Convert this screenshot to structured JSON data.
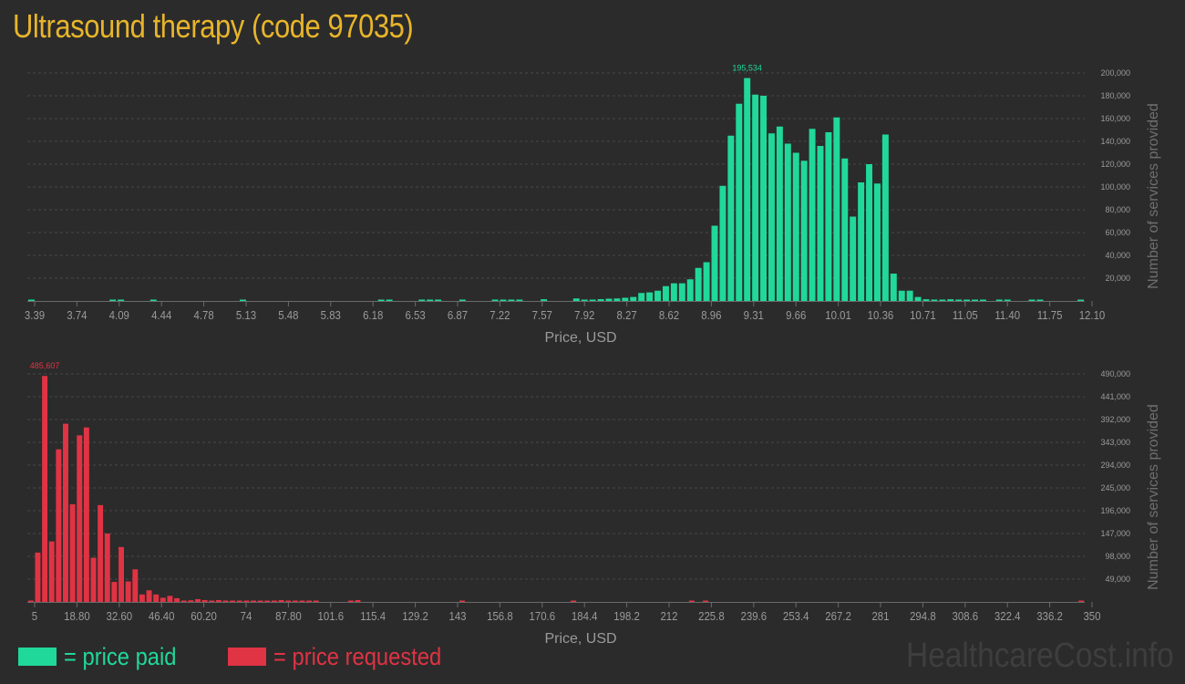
{
  "title": "Ultrasound therapy (code 97035)",
  "colors": {
    "background": "#2b2b2b",
    "paid": "#20d89a",
    "requested": "#e03344",
    "title": "#e8b52a",
    "axis_text": "#9a9a9a"
  },
  "legend": {
    "paid_label": "= price paid",
    "requested_label": "= price requested"
  },
  "watermark": "HealthcareCost.info",
  "chart_data": [
    {
      "type": "bar",
      "series": [
        {
          "name": "price paid"
        }
      ],
      "xlabel": "Price, USD",
      "ylabel": "Number of services provided",
      "xlim": [
        3.39,
        12.1
      ],
      "ylim": [
        0,
        200000
      ],
      "x_ticks": [
        "3.39",
        "3.74",
        "4.09",
        "4.44",
        "4.78",
        "5.13",
        "5.48",
        "5.83",
        "6.18",
        "6.53",
        "6.87",
        "7.22",
        "7.57",
        "7.92",
        "8.27",
        "8.62",
        "8.96",
        "9.31",
        "9.66",
        "10.01",
        "10.36",
        "10.71",
        "11.05",
        "11.40",
        "11.75",
        "12.10"
      ],
      "y_ticks": [
        "20,000",
        "40,000",
        "60,000",
        "80,000",
        "100,000",
        "120,000",
        "140,000",
        "160,000",
        "180,000",
        "200,000"
      ],
      "peak_label": "195,534",
      "grid": true,
      "values": [
        800,
        0,
        0,
        0,
        0,
        0,
        0,
        0,
        0,
        0,
        600,
        400,
        0,
        0,
        0,
        500,
        0,
        0,
        0,
        0,
        0,
        0,
        0,
        0,
        0,
        0,
        600,
        0,
        0,
        0,
        0,
        0,
        0,
        0,
        0,
        0,
        0,
        0,
        0,
        0,
        0,
        0,
        0,
        500,
        500,
        0,
        0,
        0,
        400,
        400,
        400,
        0,
        0,
        300,
        0,
        0,
        0,
        500,
        500,
        900,
        800,
        0,
        0,
        1500,
        0,
        0,
        0,
        2200,
        500,
        1000,
        1600,
        2000,
        2200,
        2800,
        3500,
        7000,
        7500,
        9000,
        13000,
        15500,
        15500,
        19000,
        29000,
        34000,
        66000,
        101000,
        145000,
        173000,
        195534,
        181000,
        180000,
        147000,
        153000,
        138000,
        130000,
        123000,
        151000,
        136000,
        148000,
        161000,
        125000,
        74000,
        104000,
        120000,
        103000,
        146000,
        24000,
        9000,
        9000,
        3500,
        1500,
        1200,
        1000,
        1500,
        900,
        800,
        500,
        400,
        0,
        500,
        500,
        0,
        0,
        700,
        500,
        0,
        0,
        0,
        0,
        500
      ]
    },
    {
      "type": "bar",
      "series": [
        {
          "name": "price requested"
        }
      ],
      "xlabel": "Price, USD",
      "ylabel": "Number of services provided",
      "xlim": [
        5,
        350
      ],
      "ylim": [
        0,
        490000
      ],
      "x_ticks": [
        "5",
        "18.80",
        "32.60",
        "46.40",
        "60.20",
        "74",
        "87.80",
        "101.6",
        "115.4",
        "129.2",
        "143",
        "156.8",
        "170.6",
        "184.4",
        "198.2",
        "212",
        "225.8",
        "239.6",
        "253.4",
        "267.2",
        "281",
        "294.8",
        "308.6",
        "322.4",
        "336.2",
        "350"
      ],
      "y_ticks": [
        "49,000",
        "98,000",
        "147,000",
        "196,000",
        "245,000",
        "294,000",
        "343,000",
        "392,000",
        "441,000",
        "490,000"
      ],
      "peak_label": "485,607",
      "grid": true,
      "values": [
        3000,
        106000,
        485607,
        130000,
        328000,
        383000,
        210000,
        358000,
        375000,
        95000,
        208000,
        147000,
        43000,
        118000,
        44000,
        70000,
        16000,
        25000,
        16000,
        9000,
        13000,
        8000,
        3000,
        3500,
        6000,
        4000,
        3000,
        4000,
        3000,
        2000,
        1500,
        1500,
        1000,
        1200,
        1000,
        500,
        4000,
        1000,
        500,
        800,
        500,
        500,
        0,
        0,
        0,
        0,
        2000,
        4000,
        0,
        0,
        0,
        0,
        0,
        0,
        0,
        0,
        0,
        0,
        0,
        0,
        0,
        0,
        1500,
        0,
        0,
        0,
        0,
        0,
        0,
        0,
        0,
        0,
        0,
        0,
        0,
        0,
        0,
        0,
        2500,
        0,
        0,
        0,
        0,
        0,
        0,
        0,
        0,
        0,
        0,
        0,
        0,
        0,
        0,
        0,
        0,
        2500,
        0,
        1500,
        0,
        0,
        0,
        0,
        0,
        0,
        0,
        0,
        0,
        0,
        0,
        0,
        0,
        0,
        0,
        0,
        0,
        0,
        0,
        0,
        0,
        0,
        0,
        0,
        0,
        0,
        0,
        0,
        0,
        0,
        0,
        0,
        0,
        0,
        0,
        0,
        0,
        0,
        0,
        0,
        0,
        0,
        0,
        0,
        0,
        0,
        0,
        0,
        0,
        0,
        0,
        0,
        0,
        2500
      ]
    }
  ]
}
